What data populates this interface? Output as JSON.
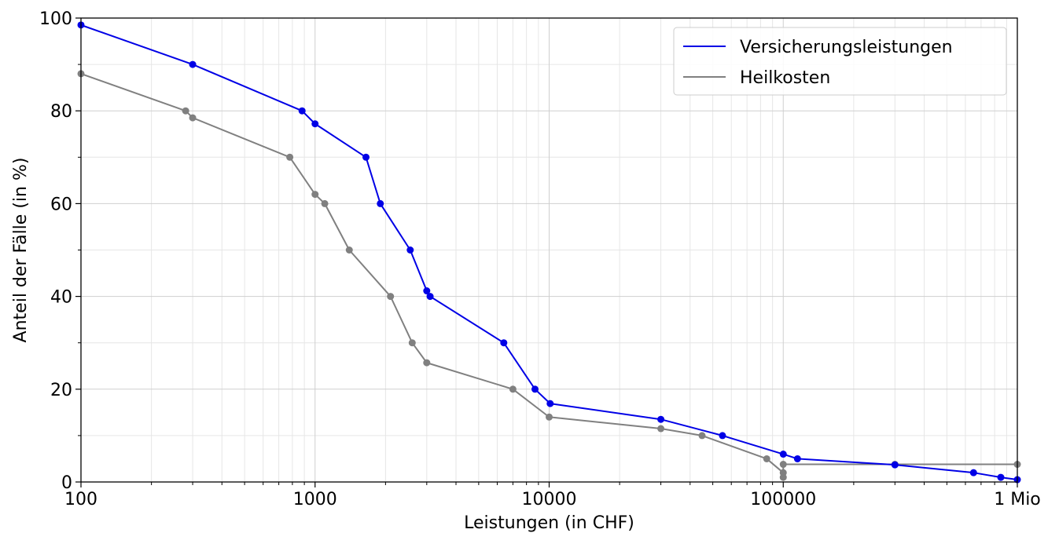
{
  "chart_data": {
    "type": "line",
    "xscale": "log",
    "xlim": [
      100,
      1000000
    ],
    "ylim": [
      0,
      100
    ],
    "xlabel": "Leistungen (in CHF)",
    "ylabel": "Anteil der Fälle (in %)",
    "x_ticks": [
      {
        "value": 100,
        "label": "100"
      },
      {
        "value": 1000,
        "label": "1000"
      },
      {
        "value": 10000,
        "label": "10000"
      },
      {
        "value": 100000,
        "label": "100000"
      },
      {
        "value": 1000000,
        "label": "1 Mio"
      }
    ],
    "y_ticks": [
      {
        "value": 0,
        "label": "0"
      },
      {
        "value": 20,
        "label": "20"
      },
      {
        "value": 40,
        "label": "40"
      },
      {
        "value": 60,
        "label": "60"
      },
      {
        "value": 80,
        "label": "80"
      },
      {
        "value": 100,
        "label": "100"
      }
    ],
    "grid": true,
    "legend_position": "top-right",
    "series": [
      {
        "name": "Versicherungsleistungen",
        "color": "#0000e6",
        "points": [
          [
            100,
            98.5
          ],
          [
            300,
            90
          ],
          [
            880,
            80
          ],
          [
            1000,
            77.2
          ],
          [
            1650,
            70
          ],
          [
            1900,
            60
          ],
          [
            2550,
            50
          ],
          [
            3000,
            41.2
          ],
          [
            3100,
            40
          ],
          [
            6400,
            30
          ],
          [
            8700,
            20
          ],
          [
            10100,
            16.9
          ],
          [
            30000,
            13.5
          ],
          [
            55000,
            10
          ],
          [
            100000,
            6
          ],
          [
            115000,
            5
          ],
          [
            300000,
            3.7
          ],
          [
            650000,
            2
          ],
          [
            850000,
            1
          ],
          [
            1000000,
            0.5
          ]
        ]
      },
      {
        "name": "Heilkosten",
        "color": "#808080",
        "points": [
          [
            100,
            88
          ],
          [
            280,
            80
          ],
          [
            300,
            78.5
          ],
          [
            780,
            70
          ],
          [
            1000,
            62
          ],
          [
            1100,
            60
          ],
          [
            1400,
            50
          ],
          [
            2100,
            40
          ],
          [
            2600,
            30
          ],
          [
            3000,
            25.7
          ],
          [
            7000,
            20
          ],
          [
            10000,
            14
          ],
          [
            30000,
            11.5
          ],
          [
            45000,
            10
          ],
          [
            85000,
            5
          ],
          [
            100000,
            2
          ],
          [
            100000,
            1
          ],
          [
            100000,
            3.8
          ],
          [
            300000,
            3.8
          ],
          [
            1000000,
            3.8
          ]
        ]
      }
    ]
  }
}
